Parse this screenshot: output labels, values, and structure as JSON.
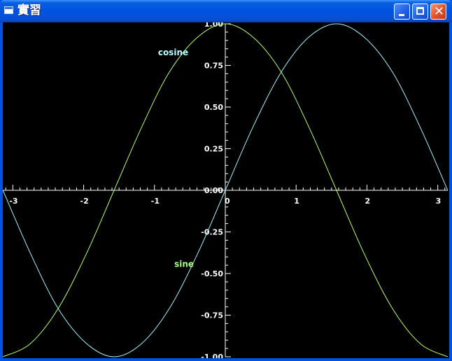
{
  "window": {
    "title": "實習",
    "icon": "window-icon",
    "controls": {
      "minimize": "minimize-icon",
      "maximize": "maximize-icon",
      "close": "close-icon"
    }
  },
  "chart_data": {
    "type": "line",
    "title": "",
    "xlabel": "",
    "ylabel": "",
    "xlim": [
      -3.14159,
      3.14159
    ],
    "ylim": [
      -1,
      1
    ],
    "grid": false,
    "x_ticks": [
      "-3",
      "-2",
      "-1",
      "0",
      "1",
      "2",
      "3"
    ],
    "x_tick_values": [
      -3,
      -2,
      -1,
      0,
      1,
      2,
      3
    ],
    "y_ticks": [
      "1.00",
      "0.75",
      "0.50",
      "0.25",
      "0.00",
      "-0.25",
      "-0.50",
      "-0.75",
      "-1.00"
    ],
    "y_tick_values": [
      1,
      0.75,
      0.5,
      0.25,
      0,
      -0.25,
      -0.5,
      -0.75,
      -1
    ],
    "series": [
      {
        "name": "cosine",
        "color": "#b8ff70",
        "label_color": "#b8ffff",
        "label_at": [
          -0.95,
          0.81
        ],
        "x": [
          -3.14,
          -2.75,
          -2.36,
          -1.96,
          -1.57,
          -1.18,
          -0.79,
          -0.39,
          0,
          0.39,
          0.79,
          1.18,
          1.57,
          1.96,
          2.36,
          2.75,
          3.14
        ],
        "values": [
          -1,
          -0.92,
          -0.71,
          -0.38,
          0,
          0.38,
          0.71,
          0.92,
          1,
          0.92,
          0.71,
          0.38,
          0,
          -0.38,
          -0.71,
          -0.92,
          -1
        ]
      },
      {
        "name": "sine",
        "color": "#a8f0ff",
        "label_color": "#a8ff8a",
        "label_at": [
          -0.72,
          -0.46
        ],
        "x": [
          -3.14,
          -2.75,
          -2.36,
          -1.96,
          -1.57,
          -1.18,
          -0.79,
          -0.39,
          0,
          0.39,
          0.79,
          1.18,
          1.57,
          1.96,
          2.36,
          2.75,
          3.14
        ],
        "values": [
          0,
          -0.38,
          -0.71,
          -0.92,
          -1,
          -0.92,
          -0.71,
          -0.38,
          0,
          0.38,
          0.71,
          0.92,
          1,
          0.92,
          0.71,
          0.38,
          0
        ]
      }
    ]
  }
}
